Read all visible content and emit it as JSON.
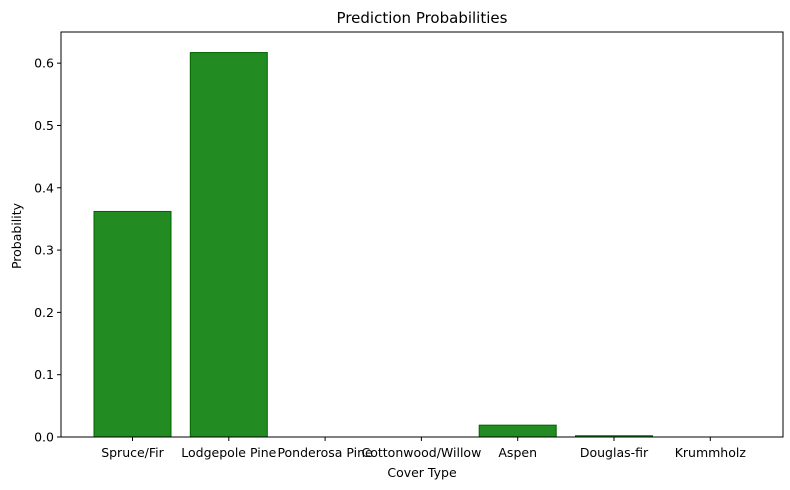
{
  "chart_data": {
    "type": "bar",
    "title": "Prediction Probabilities",
    "xlabel": "Cover Type",
    "ylabel": "Probability",
    "categories": [
      "Spruce/Fir",
      "Lodgepole Pine",
      "Ponderosa Pine",
      "Cottonwood/Willow",
      "Aspen",
      "Douglas-fir",
      "Krummholz"
    ],
    "values": [
      0.362,
      0.617,
      0.0,
      0.0,
      0.019,
      0.002,
      0.0
    ],
    "ylim": [
      0,
      0.65
    ],
    "yticks": [
      "0.0",
      "0.1",
      "0.2",
      "0.3",
      "0.4",
      "0.5",
      "0.6"
    ],
    "grid": false,
    "bar_color": "#228B22",
    "bar_edge_color": "#006400"
  }
}
